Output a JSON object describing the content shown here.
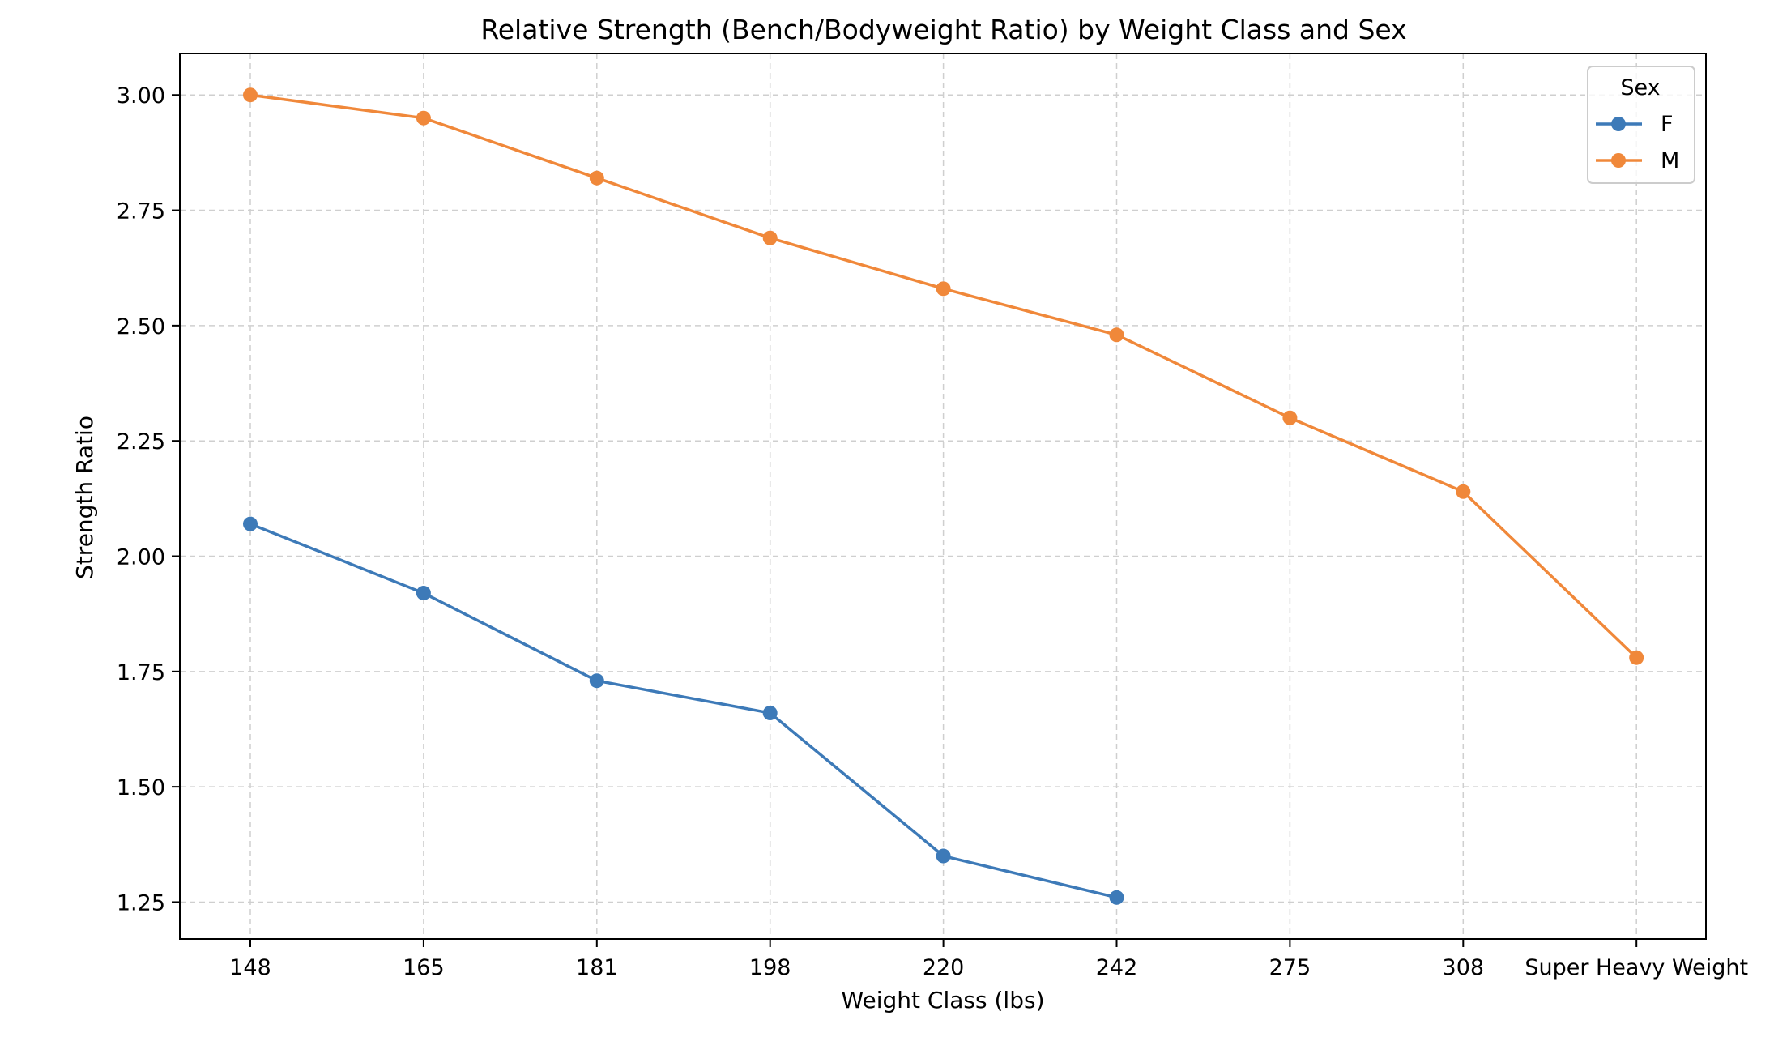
{
  "chart_data": {
    "type": "line",
    "title": "Relative Strength (Bench/Bodyweight Ratio) by Weight Class and Sex",
    "xlabel": "Weight Class (lbs)",
    "ylabel": "Strength Ratio",
    "categories": [
      "148",
      "165",
      "181",
      "198",
      "220",
      "242",
      "275",
      "308",
      "Super Heavy Weight"
    ],
    "yticks": [
      1.25,
      1.5,
      1.75,
      2.0,
      2.25,
      2.5,
      2.75,
      3.0
    ],
    "ytick_labels": [
      "1.25",
      "1.50",
      "1.75",
      "2.00",
      "2.25",
      "2.50",
      "2.75",
      "3.00"
    ],
    "ylim": [
      1.17,
      3.09
    ],
    "grid": true,
    "legend": {
      "title": "Sex",
      "placement": "top-right"
    },
    "series": [
      {
        "name": "F",
        "color": "#3d7ab8",
        "values": [
          2.07,
          1.92,
          1.73,
          1.66,
          1.35,
          1.26,
          null,
          null,
          null
        ]
      },
      {
        "name": "M",
        "color": "#f0883a",
        "values": [
          3.0,
          2.95,
          2.82,
          2.69,
          2.58,
          2.48,
          2.3,
          2.14,
          1.78
        ]
      }
    ]
  }
}
